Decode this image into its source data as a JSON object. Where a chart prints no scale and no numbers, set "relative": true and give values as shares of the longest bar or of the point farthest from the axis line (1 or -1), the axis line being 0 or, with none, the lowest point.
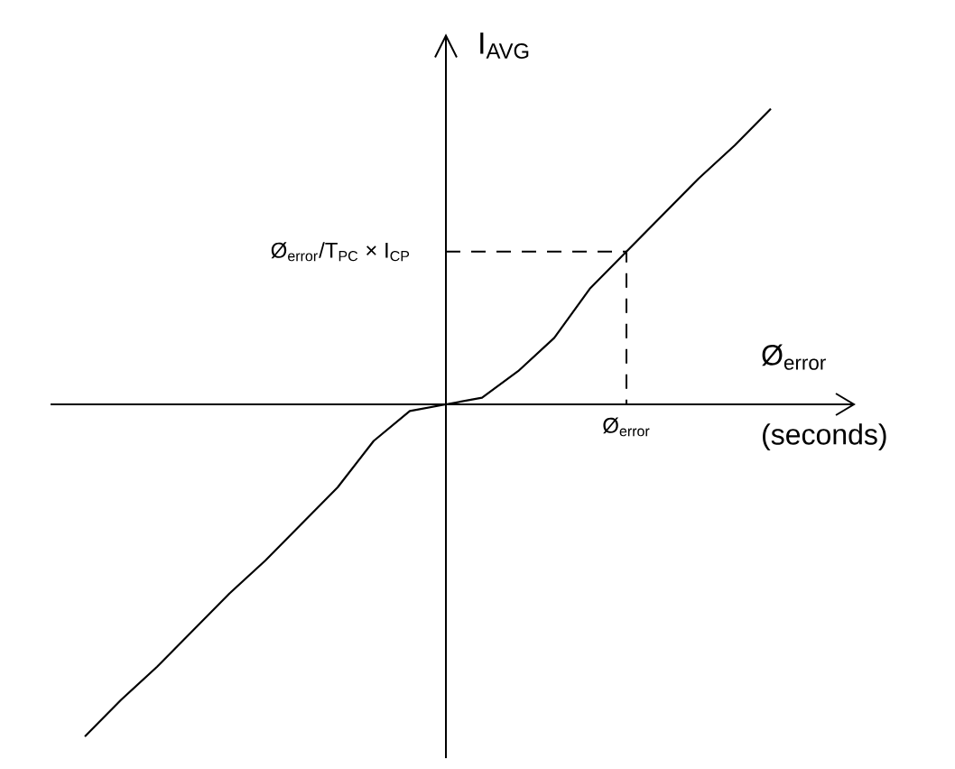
{
  "chart_data": {
    "type": "line",
    "relative": true,
    "categories": [
      null,
      null,
      null,
      null,
      null,
      null,
      null,
      null,
      null,
      null,
      null,
      null,
      null,
      null,
      null,
      null,
      null,
      null,
      null,
      null
    ],
    "values": [
      -1.0,
      -0.89,
      -0.79,
      -0.68,
      -0.57,
      -0.47,
      -0.36,
      -0.25,
      -0.11,
      -0.02,
      0,
      0.02,
      0.1,
      0.2,
      0.35,
      0.46,
      0.57,
      0.68,
      0.78,
      0.89
    ],
    "color": "#000000",
    "xlabel": "Ø$_{error}$ (seconds)",
    "ylabel": "I$_{AVG}$",
    "annotations": [
      "Ø$_{error}$"
    ],
    "ref_lines": [
      {
        "axis": "y",
        "value": 0.46,
        "label": "Ø$_{error}$/T$_{PC}$ × I$_{CP}$",
        "line_style": "dashed"
      }
    ]
  }
}
